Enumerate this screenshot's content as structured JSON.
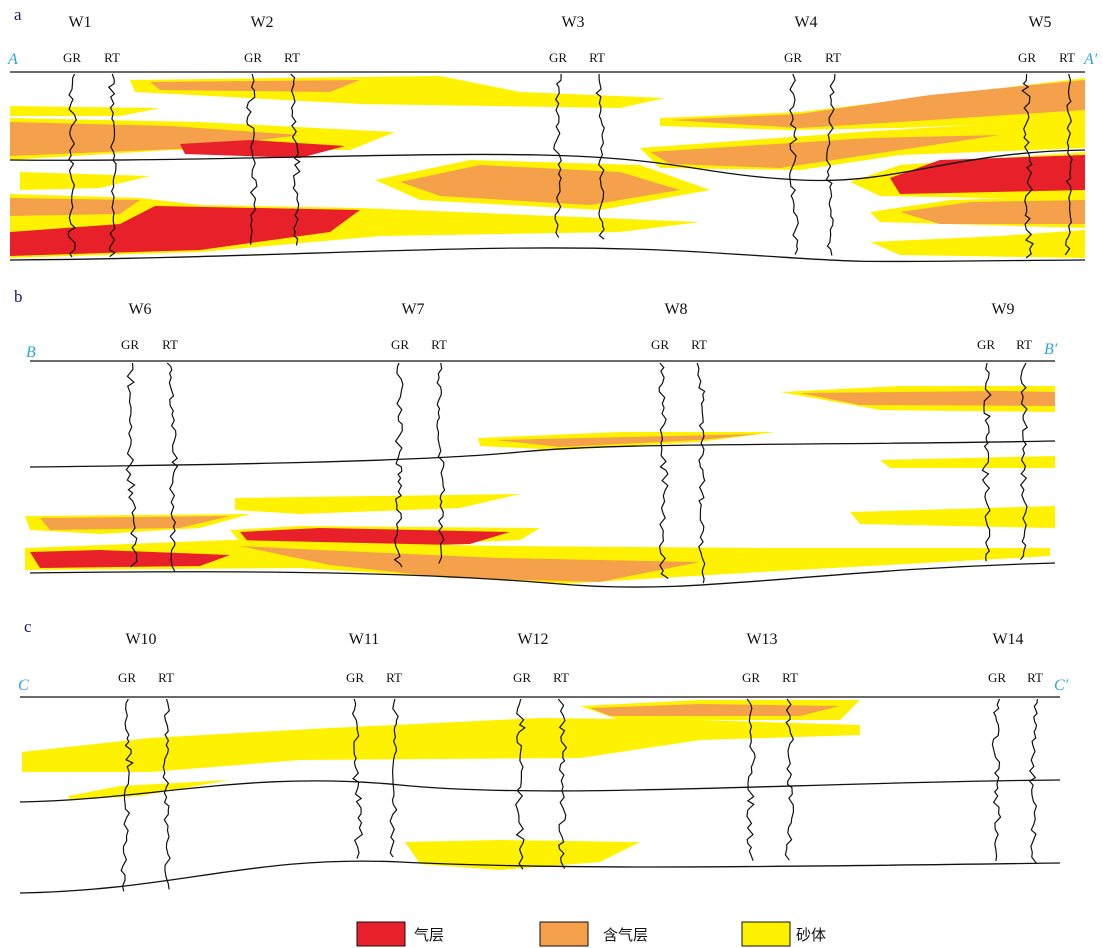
{
  "panels": [
    {
      "label": "a",
      "start": "A",
      "end": "A′",
      "wells": [
        {
          "name": "W1",
          "logs": [
            "GR",
            "RT"
          ]
        },
        {
          "name": "W2",
          "logs": [
            "GR",
            "RT"
          ]
        },
        {
          "name": "W3",
          "logs": [
            "GR",
            "RT"
          ]
        },
        {
          "name": "W4",
          "logs": [
            "GR",
            "RT"
          ]
        },
        {
          "name": "W5",
          "logs": [
            "GR",
            "RT"
          ]
        }
      ]
    },
    {
      "label": "b",
      "start": "B",
      "end": "B′",
      "wells": [
        {
          "name": "W6",
          "logs": [
            "GR",
            "RT"
          ]
        },
        {
          "name": "W7",
          "logs": [
            "GR",
            "RT"
          ]
        },
        {
          "name": "W8",
          "logs": [
            "GR",
            "RT"
          ]
        },
        {
          "name": "W9",
          "logs": [
            "GR",
            "RT"
          ]
        }
      ]
    },
    {
      "label": "c",
      "start": "C",
      "end": "C′",
      "wells": [
        {
          "name": "W10",
          "logs": [
            "GR",
            "RT"
          ]
        },
        {
          "name": "W11",
          "logs": [
            "GR",
            "RT"
          ]
        },
        {
          "name": "W12",
          "logs": [
            "GR",
            "RT"
          ]
        },
        {
          "name": "W13",
          "logs": [
            "GR",
            "RT"
          ]
        },
        {
          "name": "W14",
          "logs": [
            "GR",
            "RT"
          ]
        }
      ]
    }
  ],
  "legend": [
    {
      "label": "气层"
    },
    {
      "label": "含气层"
    },
    {
      "label": "砂体"
    }
  ]
}
